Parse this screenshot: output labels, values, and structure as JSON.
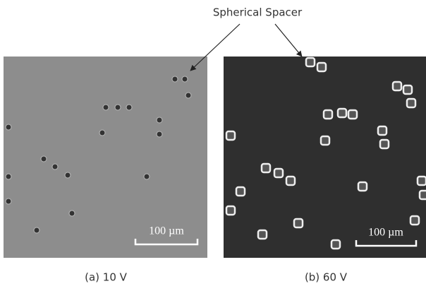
{
  "annotation": "Spherical Spacer",
  "panels": [
    {
      "caption": "(a) 10 V",
      "scale_bar": "100 µm"
    },
    {
      "caption": "(b) 60 V",
      "scale_bar": "100 µm"
    }
  ]
}
